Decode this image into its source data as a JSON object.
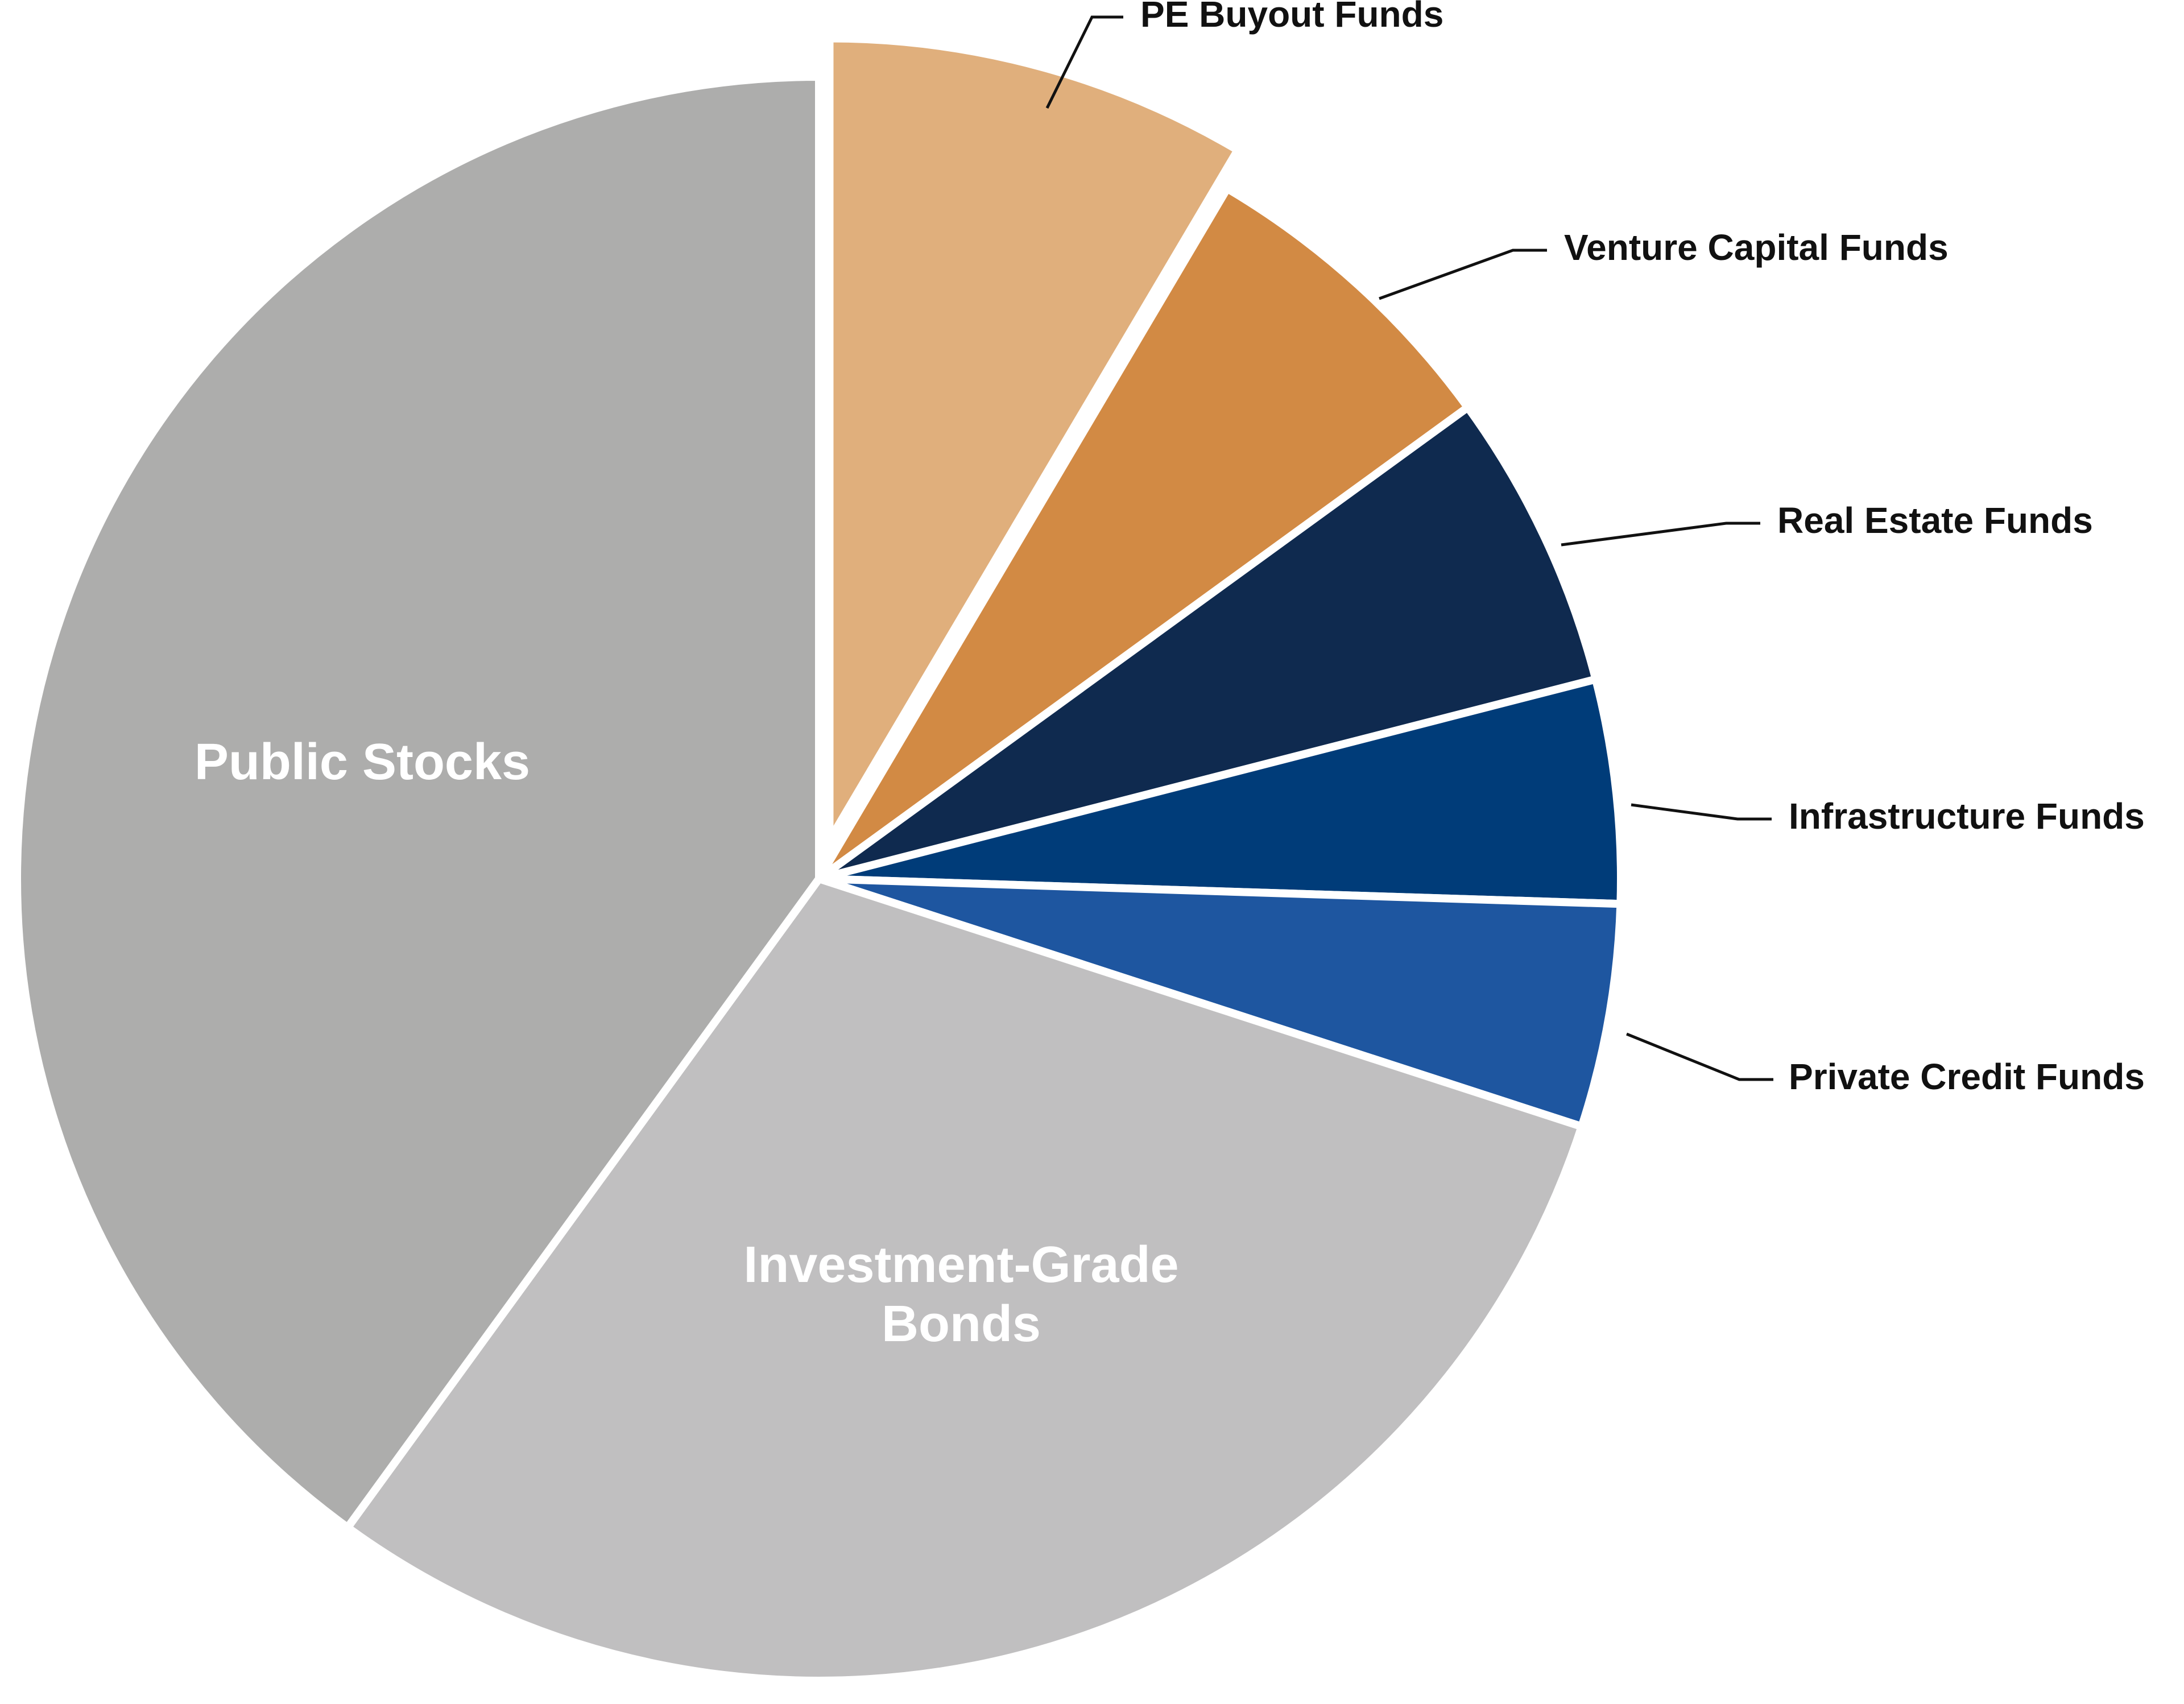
{
  "chart_data": {
    "type": "pie",
    "title": "",
    "start_angle_deg": 0,
    "direction": "clockwise",
    "colors": {
      "background": "#ffffff",
      "separator": "#ffffff",
      "leader_line": "#111111",
      "inner_label": "#ffffff",
      "outer_label": "#111111"
    },
    "slices": [
      {
        "label": "PE Buyout Funds",
        "value": 8.5,
        "color": "#E0AF7C",
        "label_mode": "outside",
        "exploded": true
      },
      {
        "label": "Venture Capital Funds",
        "value": 6.5,
        "color": "#D28A44",
        "label_mode": "outside",
        "exploded": false
      },
      {
        "label": "Real Estate Funds",
        "value": 6.0,
        "color": "#0F2A4F",
        "label_mode": "outside",
        "exploded": false
      },
      {
        "label": "Infrastructure Funds",
        "value": 4.5,
        "color": "#003C79",
        "label_mode": "outside",
        "exploded": false
      },
      {
        "label": "Private Credit Funds",
        "value": 4.5,
        "color": "#1E56A0",
        "label_mode": "outside",
        "exploded": false
      },
      {
        "label": "Investment-Grade Bonds",
        "label_lines": [
          "Investment-Grade",
          "Bonds"
        ],
        "value": 30.0,
        "color": "#C0BFC0",
        "label_mode": "inside",
        "exploded": false
      },
      {
        "label": "Public Stocks",
        "label_lines": [
          "Public Stocks"
        ],
        "value": 40.0,
        "color": "#ADADAC",
        "label_mode": "inside",
        "exploded": false
      }
    ]
  }
}
